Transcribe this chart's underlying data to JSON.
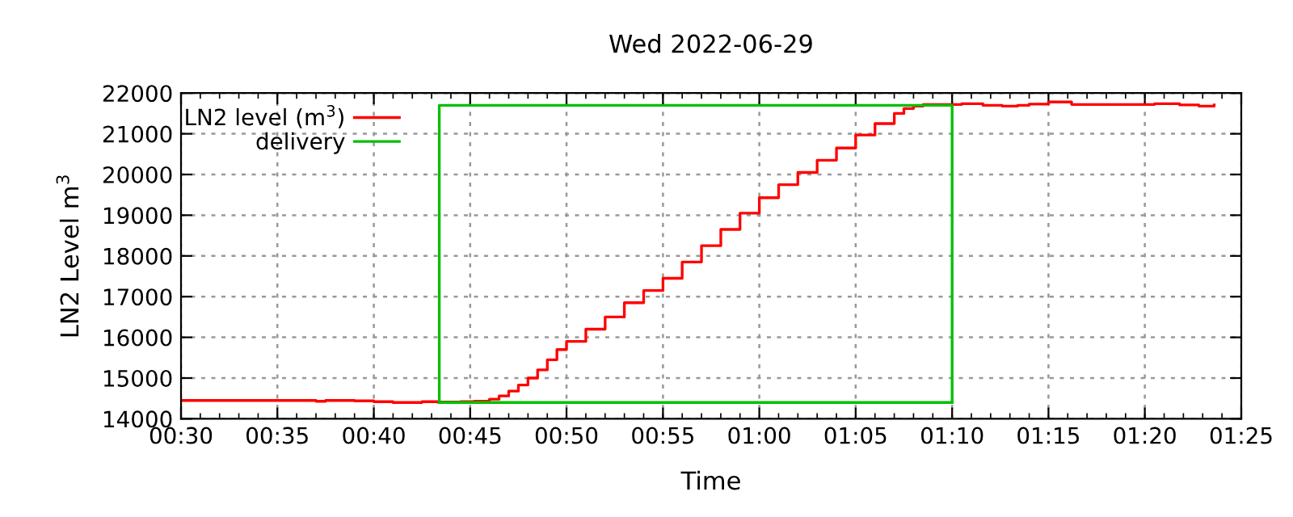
{
  "chart_data": {
    "type": "step",
    "title": "Wed 2022-06-29",
    "xlabel": "Time",
    "ylabel": "LN2 Level m$^{3}$",
    "xlim": [
      0.5,
      1.4167
    ],
    "ylim": [
      14000,
      22000
    ],
    "xticks": [
      {
        "value": 0.5,
        "label": "00:30"
      },
      {
        "value": 0.5833,
        "label": "00:35"
      },
      {
        "value": 0.6667,
        "label": "00:40"
      },
      {
        "value": 0.75,
        "label": "00:45"
      },
      {
        "value": 0.8333,
        "label": "00:50"
      },
      {
        "value": 0.9167,
        "label": "00:55"
      },
      {
        "value": 1.0,
        "label": "01:00"
      },
      {
        "value": 1.0833,
        "label": "01:05"
      },
      {
        "value": 1.1667,
        "label": "01:10"
      },
      {
        "value": 1.25,
        "label": "01:15"
      },
      {
        "value": 1.3333,
        "label": "01:20"
      },
      {
        "value": 1.4167,
        "label": "01:25"
      }
    ],
    "yticks": [
      14000,
      15000,
      16000,
      17000,
      18000,
      19000,
      20000,
      21000,
      22000
    ],
    "grid": true,
    "legend": "top left",
    "marker": "none",
    "line_style": "solid",
    "series": [
      {
        "name": "LN2 level (m$^{3}$)",
        "color": "#ff0000",
        "x": [
          0.5,
          0.6167,
          0.625,
          0.65,
          0.6667,
          0.6833,
          0.7083,
          0.7217,
          0.7417,
          0.7533,
          0.7667,
          0.775,
          0.7833,
          0.7917,
          0.8,
          0.8083,
          0.8167,
          0.825,
          0.8333,
          0.85,
          0.8667,
          0.8833,
          0.9,
          0.9167,
          0.9333,
          0.95,
          0.9667,
          0.9833,
          1.0,
          1.0167,
          1.0333,
          1.05,
          1.0667,
          1.0833,
          1.1,
          1.1167,
          1.125,
          1.1333,
          1.1417,
          1.175,
          1.1933,
          1.21,
          1.2233,
          1.2333,
          1.25,
          1.27,
          1.3417,
          1.3633,
          1.38,
          1.3933
        ],
        "values": [
          14450,
          14430,
          14450,
          14440,
          14420,
          14400,
          14420,
          14410,
          14420,
          14430,
          14480,
          14560,
          14680,
          14830,
          15000,
          15200,
          15450,
          15700,
          15900,
          16200,
          16500,
          16850,
          17150,
          17450,
          17850,
          18250,
          18650,
          19050,
          19430,
          19750,
          20050,
          20350,
          20650,
          20970,
          21250,
          21500,
          21620,
          21680,
          21720,
          21740,
          21700,
          21680,
          21700,
          21730,
          21780,
          21720,
          21740,
          21710,
          21680,
          21710
        ]
      },
      {
        "name": "delivery",
        "color": "#00c000",
        "type": "line",
        "x": [
          0.7233,
          0.7233,
          1.1667,
          1.1667
        ],
        "values": [
          14400,
          21700,
          21700,
          14400
        ]
      },
      {
        "color": "#00c000",
        "type": "line",
        "x": [
          0.7233,
          1.1667
        ],
        "values": [
          14400,
          14400
        ]
      }
    ]
  }
}
